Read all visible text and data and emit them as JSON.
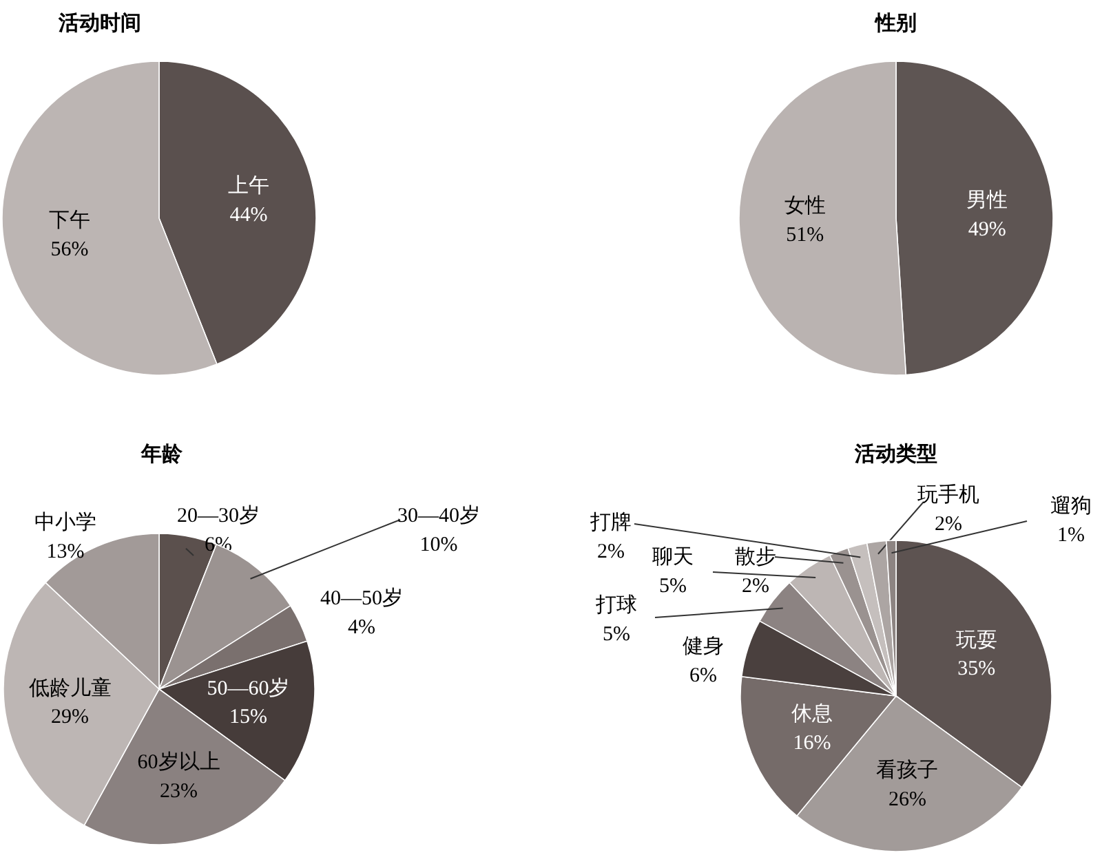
{
  "chart_data": [
    {
      "type": "pie",
      "title": "活动时间",
      "categories": [
        "上午",
        "下午"
      ],
      "values": [
        44,
        56
      ],
      "colors": [
        "#5a504e",
        "#bcb5b3"
      ],
      "value_labels": [
        "44%",
        "56%"
      ]
    },
    {
      "type": "pie",
      "title": "性别",
      "categories": [
        "男性",
        "女性"
      ],
      "values": [
        49,
        51
      ],
      "colors": [
        "#5e5553",
        "#bab3b1"
      ],
      "value_labels": [
        "49%",
        "51%"
      ]
    },
    {
      "type": "pie",
      "title": "年龄",
      "categories": [
        "20—30岁",
        "30—40岁",
        "40—50岁",
        "50—60岁",
        "60岁以上",
        "低龄儿童",
        "中小学"
      ],
      "values": [
        6,
        10,
        4,
        15,
        23,
        29,
        13
      ],
      "colors": [
        "#5b504d",
        "#9b9391",
        "#7a706e",
        "#463c3a",
        "#8a8180",
        "#bdb6b4",
        "#a29a98"
      ],
      "value_labels": [
        "6%",
        "10%",
        "4%",
        "15%",
        "23%",
        "29%",
        "13%"
      ]
    },
    {
      "type": "pie",
      "title": "活动类型",
      "categories": [
        "玩耍",
        "看孩子",
        "休息",
        "健身",
        "打球",
        "聊天",
        "散步",
        "打牌",
        "玩手机",
        "遛狗"
      ],
      "values": [
        35,
        26,
        16,
        6,
        5,
        5,
        2,
        2,
        2,
        1
      ],
      "colors": [
        "#5d5351",
        "#a29b99",
        "#756b69",
        "#4a403e",
        "#8c8382",
        "#bdb6b4",
        "#9a9290",
        "#c5bfbd",
        "#aca5a3",
        "#8d8482"
      ],
      "value_labels": [
        "35%",
        "26%",
        "16%",
        "6%",
        "5%",
        "5%",
        "2%",
        "2%",
        "2%",
        "1%"
      ]
    }
  ]
}
